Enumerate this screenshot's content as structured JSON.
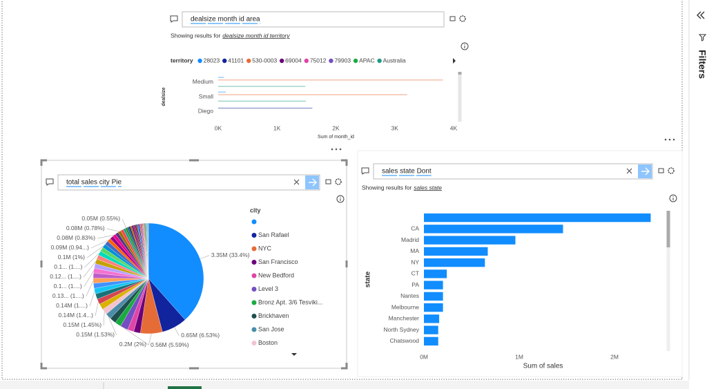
{
  "qa": [
    {
      "query": "dealsize month id area",
      "showing": "Showing results for",
      "interpretation": "dealsize month id territory"
    },
    {
      "query": "total sales city Pie"
    },
    {
      "query": "sales state Dont",
      "showing": "Showing results for",
      "interpretation": "sales state"
    }
  ],
  "filters_pane": {
    "title": "Filters"
  },
  "chart_data": [
    {
      "type": "bar",
      "horizontal": true,
      "x_label": "Sum of month_id",
      "y_label": "dealsize",
      "legend_title": "territory",
      "categories": [
        "Medium",
        "Small",
        "Diego"
      ],
      "series": [
        {
          "name": "28023",
          "color": "#118DFF",
          "values": [
            100,
            130,
            null
          ]
        },
        {
          "name": "41101",
          "color": "#12239E",
          "values": [
            null,
            null,
            1600
          ]
        },
        {
          "name": "530-0003",
          "color": "#E66C37",
          "values": [
            3820,
            3210,
            null
          ]
        },
        {
          "name": "69004",
          "color": "#6B007B",
          "values": [
            null,
            null,
            null
          ]
        },
        {
          "name": "75012",
          "color": "#E044A7",
          "values": [
            null,
            null,
            null
          ]
        },
        {
          "name": "79903",
          "color": "#744EC2",
          "values": [
            null,
            null,
            null
          ]
        },
        {
          "name": "APAC",
          "color": "#1AAB40",
          "values": [
            null,
            null,
            null
          ]
        },
        {
          "name": "Australia",
          "color": "#1F9A85",
          "values": [
            1480,
            1490,
            null
          ]
        }
      ],
      "xlim": [
        0,
        4000
      ],
      "xticks": [
        {
          "value": 0,
          "label": "0K"
        },
        {
          "value": 1000,
          "label": "1K"
        },
        {
          "value": 2000,
          "label": "2K"
        },
        {
          "value": 3000,
          "label": "3K"
        },
        {
          "value": 4000,
          "label": "4K"
        }
      ],
      "grid": false
    },
    {
      "type": "pie",
      "legend_title": "city",
      "categories": [
        null,
        "San Rafael",
        "NYC",
        "San Francisco",
        "New Bedford",
        "Level 3",
        "Bronz Apt. 3/6 Tesviki...",
        "Brickhaven",
        "San Jose",
        "Boston",
        null,
        null,
        null,
        null,
        null,
        null,
        null,
        null,
        null,
        null,
        null,
        null,
        null,
        null,
        null,
        null,
        null,
        null,
        null,
        null,
        null,
        null,
        null,
        null,
        null,
        null,
        null,
        null,
        null,
        null,
        null,
        null,
        null,
        null,
        null,
        null,
        null,
        null,
        null,
        null,
        null,
        null,
        null
      ],
      "values": [
        3.35,
        0.65,
        0.56,
        0.17,
        0.16,
        0.2,
        0.16,
        0.16,
        0.15,
        0.15,
        0.15,
        0.14,
        0.14,
        0.14,
        0.13,
        0.13,
        0.13,
        0.12,
        0.12,
        0.12,
        0.11,
        0.11,
        0.11,
        0.1,
        0.1,
        0.09,
        0.09,
        0.08,
        0.08,
        0.08,
        0.07,
        0.06,
        0.05,
        0.04,
        0.04,
        0.04,
        0.04,
        0.04,
        0.03,
        0.03,
        0.03,
        0.03,
        0.03,
        0.02,
        0.02,
        0.02,
        0.02,
        0.02,
        0.02,
        0.02,
        0.02,
        0.02,
        0.02
      ],
      "value_labels": [
        "3.35M (33.4%)",
        "0.65M (6.53%)",
        "0.56M (5.59%)",
        null,
        null,
        "0.2M (2%)",
        null,
        null,
        "0.15M (1.53%)",
        "0.15M (1.45%)",
        null,
        "0.14M (1.4...)",
        null,
        "0.14M (1....)",
        null,
        "0.13... (1....)",
        null,
        "0.1... (1....)",
        null,
        "0.12... (1....)",
        null,
        "0.1... (1....)",
        null,
        "0.1M (1%)",
        null,
        "0.09M (0.94...)",
        null,
        "0.08M (0.83%)",
        null,
        "0.08M (0.78%)",
        null,
        null,
        "0.05M (0.55%)",
        null,
        null,
        null,
        null,
        null,
        null,
        null,
        null,
        null,
        null,
        null,
        null,
        null,
        null,
        null,
        null,
        null,
        null,
        null,
        null
      ],
      "colors": [
        "#118DFF",
        "#12239E",
        "#E66C37",
        "#6B007B",
        "#E044A7",
        "#744EC2",
        "#1AAB40",
        "#1F4E4E",
        "#4A8DA8",
        "#F2C4D0",
        "#D9B300",
        "#D64550",
        "#197278",
        "#15C6F4",
        "#4092FF",
        "#FFA058",
        "#BE5DC9",
        "#F472D0",
        "#B5A1FF",
        "#C4A200",
        "#FF8080",
        "#00DBBC",
        "#5BD667",
        "#0091D5",
        "#4668C5",
        "#FF6300",
        "#99008A",
        "#EC008C",
        "#533285",
        "#99700A",
        "#FF4141",
        "#1F9A85",
        "#25891C",
        "#0057A2",
        "#002050",
        "#C94F0F",
        "#450F54",
        "#B60064",
        "#34124F",
        "#6A1C06",
        "#118DFF",
        "#12239E",
        "#E66C37",
        "#6B007B",
        "#E044A7",
        "#744EC2",
        "#D9B300",
        "#D64550",
        "#197278",
        "#1AAB40",
        "#15C6F4",
        "#4092FF",
        "#FFA058"
      ]
    },
    {
      "type": "bar",
      "horizontal": true,
      "x_label": "Sum of sales",
      "y_label": "state",
      "color": "#118DFF",
      "categories": [
        null,
        "CA",
        "Madrid",
        "MA",
        "NY",
        "CT",
        "PA",
        "Nantes",
        "Melbourne",
        "Manchester",
        "North Sydney",
        "Chatswood"
      ],
      "values": [
        2380000,
        1460000,
        960000,
        670000,
        640000,
        240000,
        200000,
        200000,
        200000,
        160000,
        150000,
        150000
      ],
      "xlim": [
        0,
        2500000
      ],
      "xticks": [
        {
          "value": 0,
          "label": "0M"
        },
        {
          "value": 1000000,
          "label": "1M"
        },
        {
          "value": 2000000,
          "label": "2M"
        }
      ],
      "grid": false
    }
  ]
}
